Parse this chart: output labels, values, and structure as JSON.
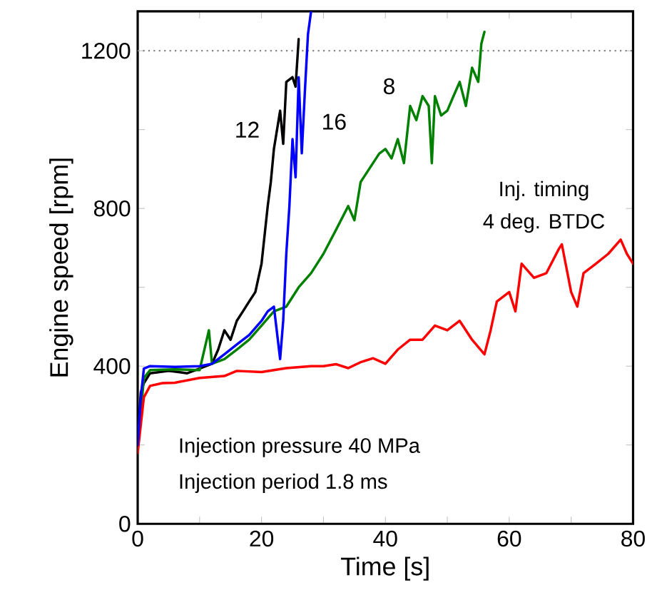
{
  "chart_data": {
    "type": "line",
    "xlabel": "Time    [s]",
    "ylabel": "Engine speed    [rpm]",
    "xlim": [
      0,
      80
    ],
    "ylim": [
      0,
      1300
    ],
    "xticks": [
      0,
      {
        "value": 10,
        "label": null
      },
      20,
      {
        "value": 30,
        "label": null
      },
      40,
      {
        "value": 50,
        "label": null
      },
      60,
      {
        "value": 70,
        "label": null
      },
      80
    ],
    "yticks": [
      0,
      {
        "value": 200,
        "label": null
      },
      400,
      {
        "value": 600,
        "label": null
      },
      800,
      {
        "value": 1000,
        "label": null
      },
      1200
    ],
    "grid": false,
    "legend": false,
    "marker": "none",
    "line_style": "solid",
    "ref_lines": [
      {
        "axis": "y",
        "value": 1200,
        "color": "#808080",
        "line_style": "dotted"
      }
    ],
    "annotations": [
      "Injection pressure 40 MPa",
      "Injection period    1.8 ms",
      "Inj. timing",
      "4 deg. BTDC"
    ],
    "series": [
      {
        "name": "12",
        "color": "#000000",
        "x": [
          0,
          0.5,
          1,
          2,
          5,
          8,
          10,
          12,
          13,
          14,
          15,
          16,
          17,
          18,
          19,
          20,
          21,
          21.5,
          22,
          23,
          23.5,
          24,
          25,
          25.5,
          26
        ],
        "values": [
          200,
          333,
          357,
          382,
          388,
          382,
          394,
          406,
          442,
          491,
          467,
          515,
          539,
          564,
          588,
          660,
          806,
          867,
          951,
          1048,
          964,
          1121,
          1133,
          1109,
          1230
        ]
      },
      {
        "name": "8",
        "color": "#008000",
        "x": [
          0,
          1,
          2,
          6,
          10,
          11.5,
          12,
          14,
          16,
          18,
          20,
          22,
          24,
          26,
          28,
          30,
          32,
          34,
          35,
          36,
          38,
          39,
          40,
          41,
          42,
          43,
          44,
          45,
          46,
          47,
          47.5,
          48,
          49,
          50,
          51,
          52,
          53,
          54,
          55,
          55.5,
          56
        ],
        "values": [
          190,
          370,
          390,
          392,
          390,
          491,
          406,
          418,
          442,
          467,
          503,
          539,
          551,
          600,
          636,
          685,
          745,
          806,
          770,
          867,
          915,
          939,
          951,
          927,
          976,
          915,
          1060,
          1024,
          1085,
          1060,
          915,
          1085,
          1036,
          1048,
          1085,
          1121,
          1060,
          1157,
          1121,
          1218,
          1248
        ]
      },
      {
        "color": "#ff0000",
        "x": [
          0,
          1,
          2,
          4,
          6,
          10,
          14,
          16,
          20,
          24,
          28,
          30,
          32,
          34,
          36,
          38,
          40,
          42,
          44,
          46,
          48,
          50,
          52,
          54,
          56,
          57,
          58,
          60,
          61,
          62,
          64,
          66,
          68,
          68.5,
          70,
          71,
          72,
          74,
          76,
          78,
          79,
          80
        ],
        "values": [
          180,
          321,
          350,
          357,
          358,
          370,
          375,
          388,
          385,
          395,
          400,
          400,
          405,
          395,
          410,
          420,
          406,
          442,
          467,
          467,
          503,
          491,
          515,
          467,
          430,
          491,
          564,
          588,
          539,
          660,
          624,
          636,
          697,
          709,
          588,
          551,
          636,
          660,
          685,
          721,
          685,
          660
        ]
      },
      {
        "name": "16",
        "color": "#0000ff",
        "x": [
          0,
          0.5,
          1,
          2,
          6,
          10,
          12,
          14,
          16,
          18,
          20,
          21,
          22,
          23,
          23.5,
          24,
          24.5,
          25,
          25.5,
          26,
          26.5,
          27,
          27.5,
          28
        ],
        "values": [
          200,
          320,
          394,
          400,
          398,
          400,
          406,
          430,
          455,
          479,
          515,
          539,
          551,
          418,
          515,
          685,
          806,
          976,
          879,
          1133,
          940,
          1097,
          1242,
          1300
        ]
      }
    ]
  }
}
